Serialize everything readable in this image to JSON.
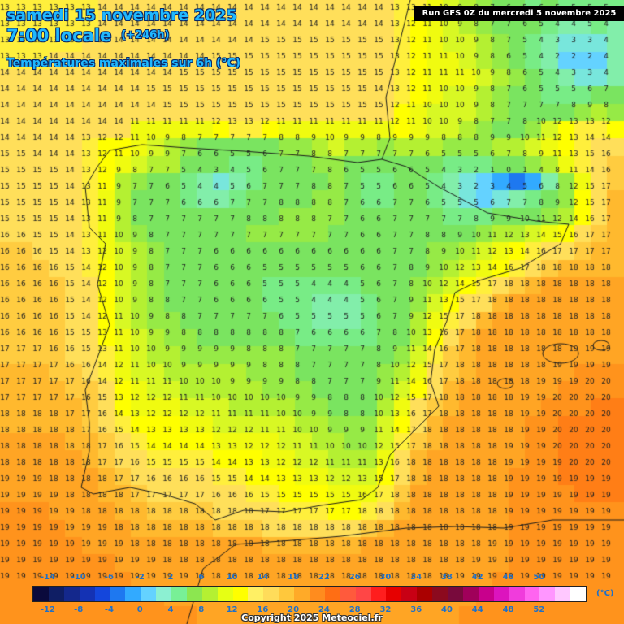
{
  "title": {
    "date": "samedi 15 novembre 2025",
    "time": "7:00 locale",
    "offset": "(+246h)",
    "variable": "Températures maximales sur 6h (°C)"
  },
  "run_banner": "Run GFS 0Z du mercredi 5 novembre 2025",
  "copyright": "Copyright 2025 Meteociel.fr",
  "legend": {
    "unit": "(°C)",
    "top_labels": [
      "-14",
      "-10",
      "-6",
      "-2",
      "2",
      "6",
      "10",
      "14",
      "18",
      "22",
      "26",
      "30",
      "34",
      "38",
      "42",
      "46",
      "50"
    ],
    "bottom_labels": [
      "-12",
      "-8",
      "-4",
      "0",
      "4",
      "8",
      "12",
      "16",
      "20",
      "24",
      "28",
      "32",
      "36",
      "40",
      "44",
      "48",
      "52"
    ],
    "colors": [
      "#0a0a3c",
      "#0f1e64",
      "#14288c",
      "#1432b4",
      "#1446dc",
      "#1e78f0",
      "#32aaff",
      "#64d2ff",
      "#8cf0d2",
      "#78f096",
      "#8ce650",
      "#b4f032",
      "#e6ff14",
      "#ffff00",
      "#fff064",
      "#ffdc5a",
      "#ffc83c",
      "#ffaa28",
      "#ff8c1e",
      "#ff6e14",
      "#ff5a3c",
      "#ff4646",
      "#ff1e1e",
      "#e60000",
      "#c80014",
      "#aa0000",
      "#8c0a1e",
      "#780a3c",
      "#a0005a",
      "#c8008c",
      "#dc14be",
      "#f03cdc",
      "#ff64f0",
      "#ff96ff",
      "#ffc8ff",
      "#ffffff"
    ]
  },
  "map": {
    "region": "Péninsule ibérique",
    "grid_values": [
      [
        13,
        13,
        13,
        13,
        13,
        13,
        14,
        14,
        14,
        14,
        14,
        14,
        14,
        14,
        14,
        14,
        14,
        14,
        14,
        14,
        14,
        14,
        14,
        14,
        13,
        13,
        11,
        10,
        9,
        8,
        7,
        6,
        5,
        6,
        5,
        5,
        5,
        5
      ],
      [
        13,
        13,
        13,
        13,
        13,
        13,
        14,
        14,
        14,
        14,
        14,
        14,
        14,
        14,
        14,
        14,
        14,
        14,
        14,
        14,
        14,
        14,
        14,
        14,
        13,
        12,
        11,
        10,
        9,
        8,
        7,
        7,
        6,
        5,
        4,
        4,
        5,
        4
      ],
      [
        13,
        13,
        13,
        13,
        13,
        14,
        14,
        14,
        14,
        14,
        14,
        14,
        14,
        14,
        14,
        14,
        15,
        15,
        15,
        15,
        15,
        15,
        15,
        15,
        13,
        12,
        11,
        10,
        10,
        9,
        8,
        7,
        5,
        4,
        3,
        3,
        3,
        4
      ],
      [
        13,
        13,
        13,
        14,
        14,
        14,
        14,
        14,
        14,
        14,
        14,
        14,
        14,
        15,
        15,
        15,
        15,
        15,
        15,
        15,
        15,
        15,
        15,
        15,
        13,
        12,
        11,
        11,
        10,
        9,
        8,
        6,
        5,
        4,
        2,
        2,
        2,
        4
      ],
      [
        14,
        14,
        14,
        14,
        14,
        14,
        14,
        14,
        14,
        14,
        14,
        15,
        15,
        15,
        15,
        15,
        15,
        15,
        15,
        15,
        15,
        15,
        15,
        15,
        13,
        12,
        11,
        11,
        11,
        10,
        9,
        8,
        6,
        5,
        4,
        3,
        3,
        4
      ],
      [
        14,
        14,
        14,
        14,
        14,
        14,
        14,
        14,
        14,
        15,
        15,
        15,
        15,
        15,
        15,
        15,
        15,
        15,
        15,
        15,
        15,
        15,
        15,
        14,
        13,
        12,
        11,
        10,
        10,
        9,
        8,
        7,
        6,
        5,
        5,
        5,
        6,
        7
      ],
      [
        14,
        14,
        14,
        14,
        14,
        14,
        14,
        14,
        14,
        14,
        15,
        15,
        15,
        15,
        15,
        15,
        15,
        15,
        15,
        15,
        15,
        15,
        15,
        15,
        12,
        11,
        10,
        10,
        10,
        9,
        8,
        7,
        7,
        7,
        7,
        8,
        9,
        8
      ],
      [
        14,
        14,
        14,
        14,
        14,
        14,
        14,
        14,
        11,
        11,
        11,
        11,
        11,
        12,
        13,
        13,
        12,
        11,
        11,
        11,
        11,
        11,
        11,
        11,
        12,
        11,
        10,
        10,
        9,
        8,
        7,
        7,
        8,
        10,
        12,
        13,
        13,
        12
      ],
      [
        14,
        14,
        14,
        14,
        14,
        13,
        12,
        12,
        11,
        10,
        9,
        8,
        7,
        7,
        7,
        7,
        7,
        8,
        8,
        9,
        10,
        9,
        9,
        8,
        9,
        9,
        9,
        8,
        8,
        8,
        9,
        9,
        10,
        11,
        12,
        13,
        14,
        14
      ],
      [
        15,
        15,
        14,
        14,
        14,
        13,
        12,
        11,
        10,
        9,
        9,
        7,
        6,
        6,
        5,
        5,
        6,
        7,
        7,
        8,
        8,
        7,
        7,
        7,
        7,
        7,
        6,
        5,
        5,
        5,
        6,
        7,
        8,
        9,
        11,
        13,
        15,
        16
      ],
      [
        15,
        15,
        15,
        15,
        14,
        13,
        12,
        9,
        8,
        7,
        7,
        5,
        4,
        3,
        4,
        5,
        6,
        7,
        7,
        7,
        8,
        6,
        5,
        5,
        6,
        6,
        5,
        4,
        3,
        2,
        1,
        0,
        1,
        4,
        8,
        11,
        14,
        16
      ],
      [
        15,
        15,
        15,
        15,
        14,
        13,
        11,
        9,
        7,
        7,
        6,
        5,
        4,
        4,
        5,
        6,
        7,
        7,
        7,
        8,
        8,
        7,
        5,
        5,
        6,
        6,
        5,
        4,
        3,
        2,
        3,
        4,
        5,
        6,
        8,
        12,
        15,
        17
      ],
      [
        15,
        15,
        15,
        15,
        14,
        13,
        11,
        9,
        7,
        7,
        7,
        6,
        6,
        6,
        7,
        7,
        7,
        8,
        8,
        8,
        8,
        7,
        6,
        6,
        7,
        7,
        6,
        5,
        5,
        5,
        6,
        7,
        7,
        8,
        9,
        12,
        15,
        17
      ],
      [
        15,
        15,
        15,
        15,
        14,
        13,
        11,
        9,
        8,
        7,
        7,
        7,
        7,
        7,
        7,
        8,
        8,
        8,
        8,
        8,
        7,
        7,
        6,
        6,
        7,
        7,
        7,
        7,
        7,
        8,
        9,
        9,
        10,
        11,
        12,
        14,
        16,
        17
      ],
      [
        16,
        16,
        15,
        15,
        14,
        13,
        11,
        10,
        9,
        8,
        7,
        7,
        7,
        7,
        7,
        7,
        7,
        7,
        7,
        7,
        7,
        7,
        6,
        6,
        7,
        7,
        8,
        8,
        9,
        10,
        11,
        12,
        13,
        14,
        15,
        16,
        17,
        17
      ],
      [
        16,
        16,
        16,
        15,
        14,
        13,
        12,
        10,
        9,
        8,
        7,
        7,
        7,
        6,
        6,
        6,
        6,
        6,
        6,
        6,
        6,
        6,
        6,
        6,
        7,
        7,
        8,
        9,
        10,
        11,
        12,
        13,
        14,
        16,
        17,
        17,
        17,
        17
      ],
      [
        16,
        16,
        16,
        16,
        15,
        14,
        12,
        10,
        9,
        8,
        7,
        7,
        7,
        6,
        6,
        6,
        5,
        5,
        5,
        5,
        5,
        5,
        6,
        6,
        7,
        8,
        9,
        10,
        12,
        13,
        14,
        16,
        17,
        18,
        18,
        18,
        18,
        18
      ],
      [
        16,
        16,
        16,
        16,
        15,
        14,
        12,
        10,
        9,
        8,
        7,
        7,
        7,
        6,
        6,
        6,
        5,
        5,
        5,
        4,
        4,
        4,
        5,
        6,
        7,
        8,
        10,
        12,
        14,
        15,
        17,
        18,
        18,
        18,
        18,
        18,
        18,
        18
      ],
      [
        16,
        16,
        16,
        16,
        15,
        14,
        12,
        10,
        9,
        8,
        8,
        7,
        7,
        6,
        6,
        6,
        6,
        5,
        5,
        4,
        4,
        4,
        5,
        6,
        7,
        9,
        11,
        13,
        15,
        17,
        18,
        18,
        18,
        18,
        18,
        18,
        18,
        18
      ],
      [
        16,
        16,
        16,
        16,
        15,
        14,
        12,
        11,
        10,
        9,
        8,
        8,
        7,
        7,
        7,
        7,
        7,
        6,
        5,
        5,
        5,
        5,
        5,
        6,
        7,
        9,
        12,
        15,
        17,
        18,
        18,
        18,
        18,
        18,
        18,
        18,
        18,
        18
      ],
      [
        16,
        16,
        16,
        16,
        15,
        15,
        13,
        11,
        10,
        9,
        9,
        8,
        8,
        8,
        8,
        8,
        8,
        8,
        7,
        6,
        6,
        6,
        6,
        7,
        8,
        10,
        13,
        16,
        17,
        18,
        18,
        18,
        18,
        18,
        18,
        18,
        18,
        18
      ],
      [
        17,
        17,
        17,
        16,
        16,
        15,
        13,
        11,
        10,
        10,
        9,
        9,
        9,
        9,
        9,
        8,
        8,
        8,
        7,
        7,
        7,
        7,
        7,
        8,
        9,
        11,
        14,
        16,
        17,
        18,
        18,
        18,
        18,
        18,
        18,
        19,
        19,
        19
      ],
      [
        17,
        17,
        17,
        17,
        16,
        16,
        14,
        12,
        11,
        10,
        10,
        9,
        9,
        9,
        9,
        9,
        8,
        8,
        8,
        7,
        7,
        7,
        7,
        8,
        10,
        12,
        15,
        17,
        18,
        18,
        18,
        18,
        18,
        18,
        19,
        19,
        19,
        19
      ],
      [
        17,
        17,
        17,
        17,
        17,
        16,
        14,
        12,
        11,
        11,
        11,
        10,
        10,
        10,
        9,
        9,
        9,
        9,
        8,
        8,
        7,
        7,
        7,
        9,
        11,
        14,
        16,
        17,
        18,
        18,
        18,
        18,
        18,
        19,
        19,
        19,
        20,
        20
      ],
      [
        17,
        17,
        17,
        17,
        17,
        16,
        15,
        13,
        12,
        12,
        12,
        11,
        11,
        10,
        10,
        10,
        10,
        10,
        9,
        9,
        8,
        8,
        8,
        10,
        12,
        15,
        17,
        18,
        18,
        18,
        18,
        18,
        19,
        19,
        20,
        20,
        20,
        20
      ],
      [
        18,
        18,
        18,
        18,
        17,
        17,
        16,
        14,
        13,
        12,
        12,
        12,
        12,
        11,
        11,
        11,
        11,
        10,
        10,
        9,
        9,
        8,
        8,
        10,
        13,
        16,
        17,
        18,
        18,
        18,
        18,
        18,
        19,
        19,
        20,
        20,
        20,
        20
      ],
      [
        18,
        18,
        18,
        18,
        18,
        17,
        16,
        15,
        14,
        13,
        13,
        13,
        13,
        12,
        12,
        12,
        11,
        11,
        10,
        10,
        9,
        9,
        9,
        11,
        14,
        17,
        18,
        18,
        18,
        18,
        18,
        18,
        19,
        19,
        20,
        20,
        20,
        20
      ],
      [
        18,
        18,
        18,
        18,
        18,
        18,
        17,
        16,
        15,
        14,
        14,
        14,
        14,
        13,
        13,
        12,
        12,
        12,
        11,
        11,
        10,
        10,
        10,
        12,
        15,
        17,
        18,
        18,
        18,
        18,
        18,
        19,
        19,
        19,
        20,
        20,
        20,
        20
      ],
      [
        18,
        18,
        18,
        18,
        18,
        18,
        17,
        17,
        16,
        15,
        15,
        15,
        15,
        14,
        14,
        13,
        13,
        12,
        12,
        12,
        11,
        11,
        11,
        13,
        16,
        18,
        18,
        18,
        18,
        18,
        18,
        19,
        19,
        19,
        19,
        20,
        20,
        20
      ],
      [
        19,
        19,
        19,
        18,
        18,
        18,
        18,
        17,
        17,
        16,
        16,
        16,
        16,
        15,
        15,
        14,
        14,
        13,
        13,
        13,
        12,
        12,
        13,
        15,
        17,
        18,
        18,
        18,
        18,
        18,
        18,
        19,
        19,
        19,
        19,
        19,
        19,
        19
      ],
      [
        19,
        19,
        19,
        19,
        18,
        18,
        18,
        18,
        17,
        17,
        17,
        17,
        17,
        16,
        16,
        16,
        15,
        15,
        15,
        15,
        15,
        15,
        16,
        17,
        18,
        18,
        18,
        18,
        18,
        18,
        18,
        19,
        19,
        19,
        19,
        19,
        19,
        19
      ],
      [
        19,
        19,
        19,
        19,
        19,
        18,
        18,
        18,
        18,
        18,
        18,
        18,
        18,
        18,
        18,
        18,
        17,
        17,
        17,
        17,
        17,
        17,
        18,
        18,
        18,
        18,
        18,
        18,
        18,
        18,
        18,
        19,
        19,
        19,
        19,
        19,
        19,
        19
      ],
      [
        19,
        19,
        19,
        19,
        19,
        19,
        19,
        18,
        18,
        18,
        18,
        18,
        18,
        18,
        18,
        18,
        18,
        18,
        18,
        18,
        18,
        18,
        18,
        18,
        18,
        18,
        18,
        18,
        18,
        18,
        18,
        19,
        19,
        19,
        19,
        19,
        19,
        19
      ],
      [
        19,
        19,
        19,
        19,
        19,
        19,
        19,
        19,
        18,
        18,
        18,
        18,
        18,
        18,
        18,
        18,
        18,
        18,
        18,
        18,
        18,
        18,
        18,
        18,
        18,
        18,
        18,
        18,
        18,
        18,
        19,
        19,
        19,
        19,
        19,
        19,
        19,
        19
      ],
      [
        19,
        19,
        19,
        19,
        19,
        19,
        19,
        19,
        19,
        19,
        18,
        18,
        18,
        18,
        18,
        18,
        18,
        18,
        18,
        18,
        18,
        18,
        18,
        18,
        18,
        18,
        18,
        18,
        18,
        19,
        19,
        19,
        19,
        19,
        19,
        19,
        19,
        19
      ],
      [
        19,
        19,
        19,
        19,
        19,
        19,
        19,
        19,
        19,
        19,
        19,
        19,
        18,
        18,
        18,
        18,
        18,
        18,
        18,
        18,
        18,
        18,
        18,
        18,
        18,
        18,
        18,
        18,
        19,
        19,
        19,
        19,
        19,
        19,
        19,
        19,
        19,
        19
      ]
    ]
  }
}
